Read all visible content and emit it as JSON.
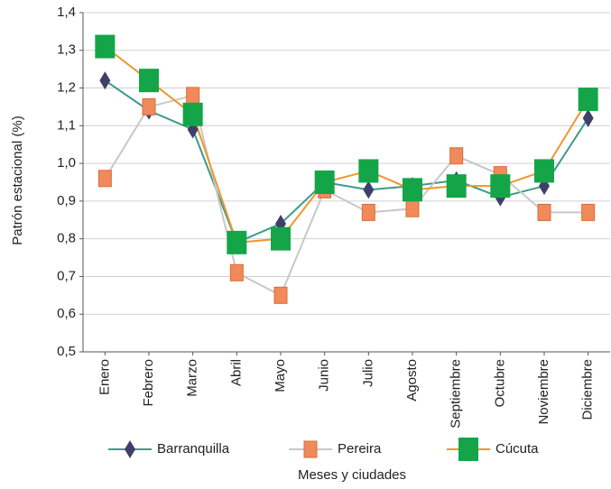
{
  "chart_data": {
    "type": "line",
    "y_label": "Patrón estacional (%)",
    "x_label": "Meses y ciudades",
    "categories": [
      "Enero",
      "Febrero",
      "Marzo",
      "Abril",
      "Mayo",
      "Junio",
      "Julio",
      "Agosto",
      "Septiembre",
      "Octubre",
      "Noviembre",
      "Diciembre"
    ],
    "series": [
      {
        "name": "Barranquilla",
        "color": "#3d9a8b",
        "marker": "diamond",
        "marker_color": "#3f3f6b",
        "values": [
          1.22,
          1.14,
          1.09,
          0.79,
          0.84,
          0.95,
          0.93,
          0.94,
          0.955,
          0.91,
          0.94,
          1.12
        ]
      },
      {
        "name": "Pereira",
        "color": "#c8c8c8",
        "marker": "square-small",
        "marker_color": "#f08a5a",
        "values": [
          0.96,
          1.15,
          1.18,
          0.71,
          0.65,
          0.93,
          0.87,
          0.88,
          1.02,
          0.97,
          0.87,
          0.87
        ]
      },
      {
        "name": "Cúcuta",
        "color": "#f0962a",
        "marker": "square",
        "marker_color": "#14a548",
        "values": [
          1.31,
          1.22,
          1.13,
          0.79,
          0.8,
          0.95,
          0.98,
          0.93,
          0.94,
          0.94,
          0.98,
          1.17
        ]
      }
    ],
    "ylim": [
      0.5,
      1.4
    ],
    "yticks": [
      {
        "value": 0.5,
        "label": "0,5"
      },
      {
        "value": 0.6,
        "label": "0,6"
      },
      {
        "value": 0.7,
        "label": "0,7"
      },
      {
        "value": 0.8,
        "label": "0,8"
      },
      {
        "value": 0.9,
        "label": "0,9"
      },
      {
        "value": 1.0,
        "label": "1,0"
      },
      {
        "value": 1.1,
        "label": "1,1"
      },
      {
        "value": 1.2,
        "label": "1,2"
      },
      {
        "value": 1.3,
        "label": "1,3"
      },
      {
        "value": 1.4,
        "label": "1,4"
      }
    ],
    "grid": true
  }
}
